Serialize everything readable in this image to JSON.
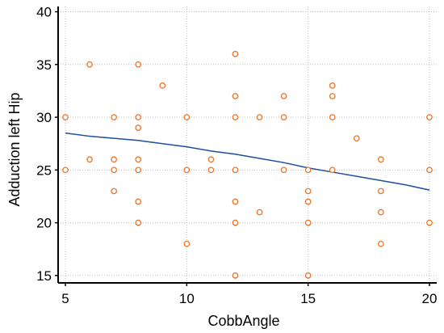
{
  "chart_data": {
    "type": "scatter",
    "title": "",
    "xlabel": "CobbAngle",
    "ylabel": "Adduction left Hip",
    "xlim": [
      4.7,
      20.3
    ],
    "ylim": [
      14.3,
      40.5
    ],
    "xticks": [
      5,
      10,
      15,
      20
    ],
    "yticks": [
      15,
      20,
      25,
      30,
      35,
      40
    ],
    "grid": true,
    "colors": {
      "points": "#e8732a",
      "trend": "#1f4e9c",
      "grid": "#bdbdbd",
      "axes": "#000000"
    },
    "points": [
      {
        "x": 5,
        "y": 30
      },
      {
        "x": 5,
        "y": 25
      },
      {
        "x": 6,
        "y": 35
      },
      {
        "x": 6,
        "y": 26
      },
      {
        "x": 7,
        "y": 30
      },
      {
        "x": 7,
        "y": 26
      },
      {
        "x": 7,
        "y": 25
      },
      {
        "x": 7,
        "y": 23
      },
      {
        "x": 8,
        "y": 35
      },
      {
        "x": 8,
        "y": 30
      },
      {
        "x": 8,
        "y": 29
      },
      {
        "x": 8,
        "y": 26
      },
      {
        "x": 8,
        "y": 25
      },
      {
        "x": 8,
        "y": 22
      },
      {
        "x": 8,
        "y": 20
      },
      {
        "x": 9,
        "y": 33
      },
      {
        "x": 10,
        "y": 30
      },
      {
        "x": 10,
        "y": 25
      },
      {
        "x": 10,
        "y": 18
      },
      {
        "x": 11,
        "y": 26
      },
      {
        "x": 11,
        "y": 25
      },
      {
        "x": 12,
        "y": 36
      },
      {
        "x": 12,
        "y": 32
      },
      {
        "x": 12,
        "y": 30
      },
      {
        "x": 12,
        "y": 25
      },
      {
        "x": 12,
        "y": 22
      },
      {
        "x": 12,
        "y": 20
      },
      {
        "x": 12,
        "y": 15
      },
      {
        "x": 13,
        "y": 30
      },
      {
        "x": 13,
        "y": 21
      },
      {
        "x": 14,
        "y": 32
      },
      {
        "x": 14,
        "y": 30
      },
      {
        "x": 14,
        "y": 25
      },
      {
        "x": 15,
        "y": 25
      },
      {
        "x": 15,
        "y": 23
      },
      {
        "x": 15,
        "y": 22
      },
      {
        "x": 15,
        "y": 20
      },
      {
        "x": 15,
        "y": 15
      },
      {
        "x": 16,
        "y": 33
      },
      {
        "x": 16,
        "y": 32
      },
      {
        "x": 16,
        "y": 30
      },
      {
        "x": 16,
        "y": 25
      },
      {
        "x": 17,
        "y": 28
      },
      {
        "x": 18,
        "y": 26
      },
      {
        "x": 18,
        "y": 23
      },
      {
        "x": 18,
        "y": 21
      },
      {
        "x": 18,
        "y": 18
      },
      {
        "x": 20,
        "y": 30
      },
      {
        "x": 20,
        "y": 25
      },
      {
        "x": 20,
        "y": 20
      }
    ],
    "trend_line": [
      {
        "x": 5,
        "y": 28.5
      },
      {
        "x": 6,
        "y": 28.2
      },
      {
        "x": 7,
        "y": 28.0
      },
      {
        "x": 8,
        "y": 27.8
      },
      {
        "x": 9,
        "y": 27.5
      },
      {
        "x": 10,
        "y": 27.2
      },
      {
        "x": 11,
        "y": 26.8
      },
      {
        "x": 12,
        "y": 26.5
      },
      {
        "x": 13,
        "y": 26.1
      },
      {
        "x": 14,
        "y": 25.7
      },
      {
        "x": 15,
        "y": 25.2
      },
      {
        "x": 16,
        "y": 24.8
      },
      {
        "x": 17,
        "y": 24.4
      },
      {
        "x": 18,
        "y": 24.0
      },
      {
        "x": 19,
        "y": 23.6
      },
      {
        "x": 20,
        "y": 23.1
      }
    ]
  }
}
